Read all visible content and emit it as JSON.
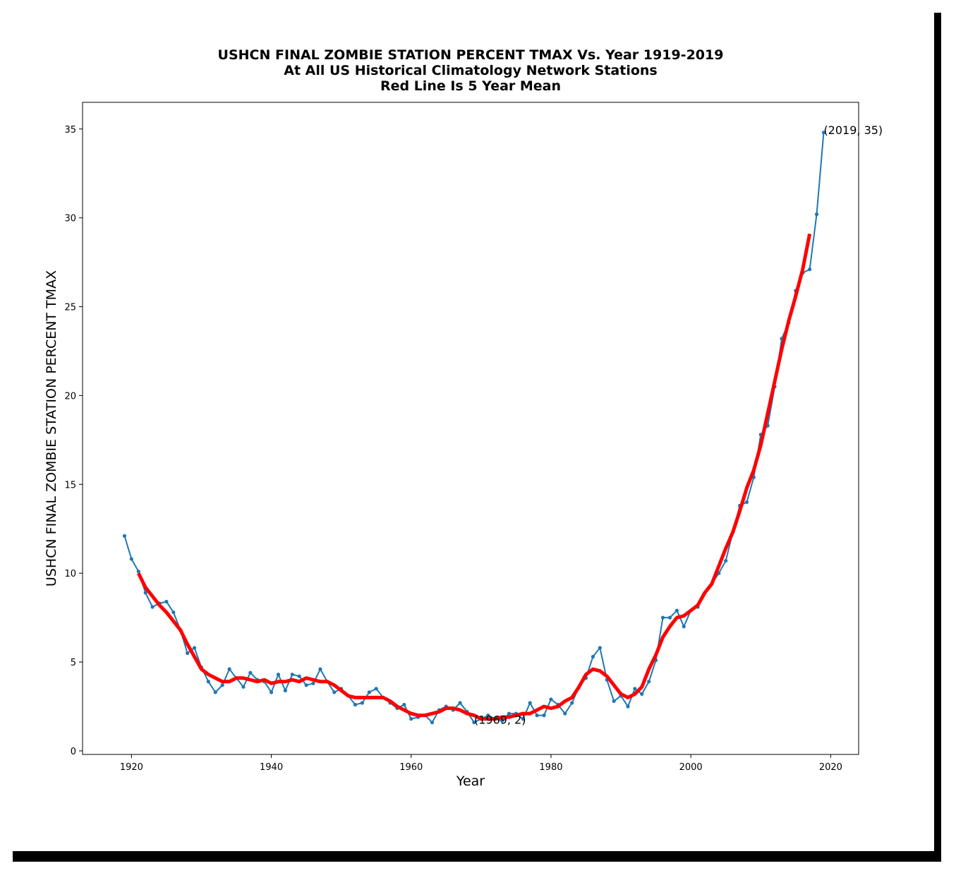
{
  "chart_data": {
    "type": "line",
    "title": [
      "USHCN FINAL ZOMBIE STATION PERCENT TMAX Vs. Year 1919-2019",
      "At All US Historical Climatology Network Stations",
      "Red Line Is 5 Year Mean"
    ],
    "xlabel": "Year",
    "ylabel": "USHCN FINAL ZOMBIE STATION PERCENT TMAX",
    "xlim": [
      1913,
      2024
    ],
    "ylim": [
      -0.2,
      36.5
    ],
    "xticks": [
      1920,
      1940,
      1960,
      1980,
      2000,
      2020
    ],
    "yticks": [
      0,
      5,
      10,
      15,
      20,
      25,
      30,
      35
    ],
    "grid": false,
    "series": [
      {
        "color": "#1f77b4",
        "marker": "dot",
        "x": [
          1919,
          1920,
          1921,
          1922,
          1923,
          1924,
          1925,
          1926,
          1927,
          1928,
          1929,
          1930,
          1931,
          1932,
          1933,
          1934,
          1935,
          1936,
          1937,
          1938,
          1939,
          1940,
          1941,
          1942,
          1943,
          1944,
          1945,
          1946,
          1947,
          1948,
          1949,
          1950,
          1951,
          1952,
          1953,
          1954,
          1955,
          1956,
          1957,
          1958,
          1959,
          1960,
          1961,
          1962,
          1963,
          1964,
          1965,
          1966,
          1967,
          1968,
          1969,
          1970,
          1971,
          1972,
          1973,
          1974,
          1975,
          1976,
          1977,
          1978,
          1979,
          1980,
          1981,
          1982,
          1983,
          1984,
          1985,
          1986,
          1987,
          1988,
          1989,
          1990,
          1991,
          1992,
          1993,
          1994,
          1995,
          1996,
          1997,
          1998,
          1999,
          2000,
          2001,
          2002,
          2003,
          2004,
          2005,
          2006,
          2007,
          2008,
          2009,
          2010,
          2011,
          2012,
          2013,
          2014,
          2015,
          2016,
          2017,
          2018,
          2019
        ],
        "y": [
          12.1,
          10.8,
          10.1,
          8.9,
          8.1,
          8.3,
          8.4,
          7.8,
          6.8,
          5.5,
          5.8,
          4.7,
          3.9,
          3.3,
          3.7,
          4.6,
          4.1,
          3.6,
          4.4,
          4.0,
          3.9,
          3.3,
          4.3,
          3.4,
          4.3,
          4.2,
          3.7,
          3.8,
          4.6,
          3.9,
          3.3,
          3.5,
          3.1,
          2.6,
          2.7,
          3.3,
          3.5,
          3.0,
          2.7,
          2.4,
          2.6,
          1.8,
          1.9,
          2.0,
          1.6,
          2.3,
          2.5,
          2.3,
          2.7,
          2.2,
          1.6,
          1.8,
          2.0,
          1.8,
          1.7,
          2.1,
          2.1,
          1.8,
          2.7,
          2.0,
          2.0,
          2.9,
          2.6,
          2.1,
          2.7,
          3.6,
          4.1,
          5.3,
          5.8,
          4.0,
          2.8,
          3.1,
          2.5,
          3.5,
          3.2,
          3.9,
          5.1,
          7.5,
          7.5,
          7.9,
          7.0,
          7.9,
          8.1,
          8.9,
          9.4,
          10.0,
          10.7,
          12.3,
          13.8,
          14.0,
          15.4,
          17.8,
          18.3,
          20.5,
          23.2,
          24.1,
          25.9,
          26.9,
          27.1,
          30.2,
          34.8
        ]
      },
      {
        "color": "#ff0000",
        "x": [
          1921,
          1922,
          1923,
          1924,
          1925,
          1926,
          1927,
          1928,
          1929,
          1930,
          1931,
          1932,
          1933,
          1934,
          1935,
          1936,
          1937,
          1938,
          1939,
          1940,
          1941,
          1942,
          1943,
          1944,
          1945,
          1946,
          1947,
          1948,
          1949,
          1950,
          1951,
          1952,
          1953,
          1954,
          1955,
          1956,
          1957,
          1958,
          1959,
          1960,
          1961,
          1962,
          1963,
          1964,
          1965,
          1966,
          1967,
          1968,
          1969,
          1970,
          1971,
          1972,
          1973,
          1974,
          1975,
          1976,
          1977,
          1978,
          1979,
          1980,
          1981,
          1982,
          1983,
          1984,
          1985,
          1986,
          1987,
          1988,
          1989,
          1990,
          1991,
          1992,
          1993,
          1994,
          1995,
          1996,
          1997,
          1998,
          1999,
          2000,
          2001,
          2002,
          2003,
          2004,
          2005,
          2006,
          2007,
          2008,
          2009,
          2010,
          2011,
          2012,
          2013,
          2014,
          2015,
          2016,
          2017
        ],
        "y": [
          10.0,
          9.2,
          8.7,
          8.2,
          7.8,
          7.3,
          6.8,
          6.0,
          5.3,
          4.6,
          4.3,
          4.1,
          3.9,
          3.9,
          4.1,
          4.1,
          4.0,
          3.9,
          4.0,
          3.8,
          3.9,
          3.9,
          4.0,
          3.9,
          4.1,
          4.0,
          3.9,
          3.9,
          3.7,
          3.4,
          3.1,
          3.0,
          3.0,
          3.0,
          3.0,
          3.0,
          2.8,
          2.5,
          2.3,
          2.1,
          2.0,
          2.0,
          2.1,
          2.2,
          2.4,
          2.4,
          2.3,
          2.1,
          2.0,
          1.8,
          1.8,
          1.8,
          1.9,
          1.9,
          2.0,
          2.1,
          2.1,
          2.3,
          2.5,
          2.4,
          2.5,
          2.8,
          3.0,
          3.6,
          4.3,
          4.6,
          4.5,
          4.2,
          3.7,
          3.2,
          3.0,
          3.2,
          3.6,
          4.6,
          5.4,
          6.4,
          7.0,
          7.5,
          7.6,
          7.9,
          8.2,
          8.9,
          9.4,
          10.4,
          11.4,
          12.3,
          13.5,
          14.8,
          15.8,
          17.2,
          19.0,
          20.8,
          22.6,
          24.2,
          25.6,
          27.1,
          29.1
        ]
      }
    ],
    "annotations": [
      {
        "text": "(2019, 35)",
        "x": 2019,
        "y": 34.8
      },
      {
        "text": "(1969, 2)",
        "x": 1969,
        "y": 1.6
      }
    ]
  }
}
